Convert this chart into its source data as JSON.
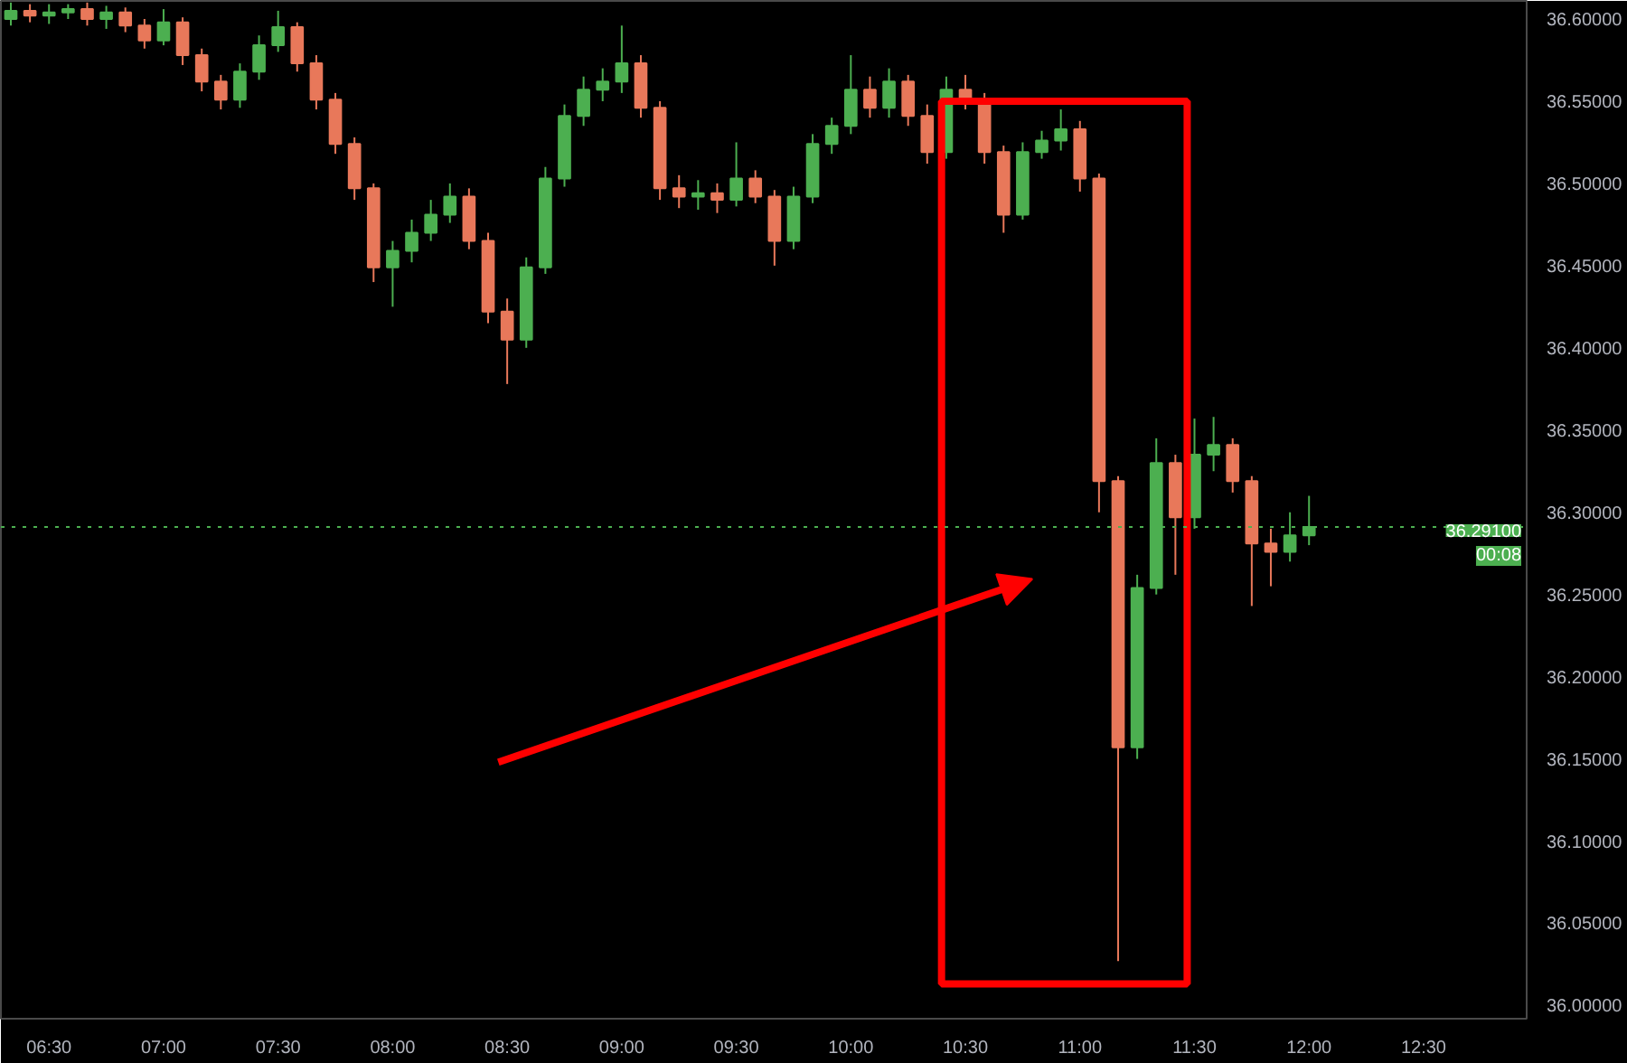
{
  "chart_data": {
    "type": "candlestick",
    "x": [
      6.3333,
      6.4167,
      6.5,
      6.5833,
      6.6667,
      6.75,
      6.8333,
      6.9167,
      7.0,
      7.0833,
      7.1667,
      7.25,
      7.3333,
      7.4167,
      7.5,
      7.5833,
      7.6667,
      7.75,
      7.8333,
      7.9167,
      8.0,
      8.0833,
      8.1667,
      8.25,
      8.3333,
      8.4167,
      8.5,
      8.5833,
      8.6667,
      8.75,
      8.8333,
      8.9167,
      9.0,
      9.0833,
      9.1667,
      9.25,
      9.3333,
      9.4167,
      9.5,
      9.5833,
      9.6667,
      9.75,
      9.8333,
      9.9167,
      10.0,
      10.0833,
      10.1667,
      10.25,
      10.3333,
      10.4167,
      10.5,
      10.5833,
      10.6667,
      10.75,
      10.8333,
      10.9167,
      11.0,
      11.0833,
      11.1667,
      11.25,
      11.3333,
      11.4167,
      11.5,
      11.5833,
      11.6667,
      11.75,
      11.8333,
      11.9167,
      12.0
    ],
    "ohlc": [
      [
        36.6,
        36.61,
        36.596,
        36.605
      ],
      [
        36.605,
        36.609,
        36.598,
        36.602
      ],
      [
        36.602,
        36.609,
        36.597,
        36.604
      ],
      [
        36.604,
        36.609,
        36.6,
        36.606
      ],
      [
        36.606,
        36.61,
        36.596,
        36.6
      ],
      [
        36.6,
        36.608,
        36.594,
        36.604
      ],
      [
        36.604,
        36.607,
        36.592,
        36.596
      ],
      [
        36.596,
        36.6,
        36.582,
        36.587
      ],
      [
        36.587,
        36.606,
        36.584,
        36.598
      ],
      [
        36.598,
        36.601,
        36.572,
        36.578
      ],
      [
        36.578,
        36.582,
        36.556,
        36.562
      ],
      [
        36.562,
        36.566,
        36.545,
        36.551
      ],
      [
        36.551,
        36.573,
        36.546,
        36.568
      ],
      [
        36.568,
        36.59,
        36.563,
        36.584
      ],
      [
        36.584,
        36.605,
        36.58,
        36.595
      ],
      [
        36.595,
        36.598,
        36.568,
        36.573
      ],
      [
        36.573,
        36.578,
        36.545,
        36.551
      ],
      [
        36.551,
        36.555,
        36.518,
        36.524
      ],
      [
        36.524,
        36.528,
        36.49,
        36.497
      ],
      [
        36.497,
        36.5,
        36.44,
        36.449
      ],
      [
        36.449,
        36.465,
        36.425,
        36.459
      ],
      [
        36.459,
        36.478,
        36.452,
        36.47
      ],
      [
        36.47,
        36.49,
        36.465,
        36.481
      ],
      [
        36.481,
        36.5,
        36.476,
        36.492
      ],
      [
        36.492,
        36.497,
        36.46,
        36.465
      ],
      [
        36.465,
        36.47,
        36.415,
        36.422
      ],
      [
        36.422,
        36.43,
        36.378,
        36.405
      ],
      [
        36.405,
        36.455,
        36.4,
        36.449
      ],
      [
        36.449,
        36.51,
        36.445,
        36.503
      ],
      [
        36.503,
        36.548,
        36.498,
        36.541
      ],
      [
        36.541,
        36.565,
        36.535,
        36.557
      ],
      [
        36.557,
        36.57,
        36.55,
        36.562
      ],
      [
        36.562,
        36.596,
        36.555,
        36.573
      ],
      [
        36.573,
        36.578,
        36.54,
        36.546
      ],
      [
        36.546,
        36.55,
        36.49,
        36.497
      ],
      [
        36.497,
        36.505,
        36.485,
        36.492
      ],
      [
        36.492,
        36.502,
        36.484,
        36.494
      ],
      [
        36.494,
        36.5,
        36.482,
        36.49
      ],
      [
        36.49,
        36.525,
        36.486,
        36.503
      ],
      [
        36.503,
        36.508,
        36.488,
        36.492
      ],
      [
        36.492,
        36.496,
        36.45,
        36.465
      ],
      [
        36.465,
        36.498,
        36.46,
        36.492
      ],
      [
        36.492,
        36.53,
        36.488,
        36.524
      ],
      [
        36.524,
        36.54,
        36.518,
        36.535
      ],
      [
        36.535,
        36.578,
        36.53,
        36.557
      ],
      [
        36.557,
        36.565,
        36.54,
        36.546
      ],
      [
        36.546,
        36.57,
        36.54,
        36.562
      ],
      [
        36.562,
        36.566,
        36.535,
        36.541
      ],
      [
        36.541,
        36.548,
        36.512,
        36.519
      ],
      [
        36.519,
        36.565,
        36.515,
        36.557
      ],
      [
        36.557,
        36.566,
        36.545,
        36.551
      ],
      [
        36.551,
        36.555,
        36.512,
        36.519
      ],
      [
        36.519,
        36.523,
        36.47,
        36.481
      ],
      [
        36.481,
        36.525,
        36.478,
        36.519
      ],
      [
        36.519,
        36.532,
        36.515,
        36.526
      ],
      [
        36.526,
        36.545,
        36.52,
        36.533
      ],
      [
        36.533,
        36.538,
        36.495,
        36.503
      ],
      [
        36.503,
        36.506,
        36.3,
        36.319
      ],
      [
        36.319,
        36.322,
        36.027,
        36.157
      ],
      [
        36.157,
        36.262,
        36.15,
        36.254
      ],
      [
        36.254,
        36.345,
        36.25,
        36.33
      ],
      [
        36.33,
        36.335,
        36.262,
        36.297
      ],
      [
        36.297,
        36.357,
        36.29,
        36.335
      ],
      [
        36.335,
        36.358,
        36.325,
        36.341
      ],
      [
        36.341,
        36.345,
        36.312,
        36.319
      ],
      [
        36.319,
        36.322,
        36.243,
        36.281
      ],
      [
        36.281,
        36.29,
        36.255,
        36.276
      ],
      [
        36.276,
        36.3,
        36.27,
        36.286
      ],
      [
        36.286,
        36.31,
        36.28,
        36.291
      ]
    ],
    "colors": [
      "#4caf50",
      "#e8785a",
      "#4caf50",
      "#4caf50",
      "#e8785a",
      "#4caf50",
      "#e8785a",
      "#e8785a",
      "#4caf50",
      "#e8785a",
      "#e8785a",
      "#e8785a",
      "#4caf50",
      "#4caf50",
      "#4caf50",
      "#e8785a",
      "#e8785a",
      "#e8785a",
      "#e8785a",
      "#e8785a",
      "#4caf50",
      "#4caf50",
      "#4caf50",
      "#4caf50",
      "#e8785a",
      "#e8785a",
      "#e8785a",
      "#4caf50",
      "#4caf50",
      "#4caf50",
      "#4caf50",
      "#4caf50",
      "#4caf50",
      "#e8785a",
      "#e8785a",
      "#e8785a",
      "#4caf50",
      "#e8785a",
      "#4caf50",
      "#e8785a",
      "#e8785a",
      "#4caf50",
      "#4caf50",
      "#4caf50",
      "#4caf50",
      "#e8785a",
      "#4caf50",
      "#e8785a",
      "#e8785a",
      "#4caf50",
      "#e8785a",
      "#e8785a",
      "#e8785a",
      "#4caf50",
      "#4caf50",
      "#4caf50",
      "#e8785a",
      "#e8785a",
      "#e8785a",
      "#4caf50",
      "#4caf50",
      "#e8785a",
      "#4caf50",
      "#4caf50",
      "#e8785a",
      "#e8785a",
      "#e8785a",
      "#4caf50",
      "#4caf50"
    ],
    "xlim": [
      6.29,
      12.95
    ],
    "xticks": [
      {
        "value": 6.5,
        "label": "06:30"
      },
      {
        "value": 7.0,
        "label": "07:00"
      },
      {
        "value": 7.5,
        "label": "07:30"
      },
      {
        "value": 8.0,
        "label": "08:00"
      },
      {
        "value": 8.5,
        "label": "08:30"
      },
      {
        "value": 9.0,
        "label": "09:00"
      },
      {
        "value": 9.5,
        "label": "09:30"
      },
      {
        "value": 10.0,
        "label": "10:00"
      },
      {
        "value": 10.5,
        "label": "10:30"
      },
      {
        "value": 11.0,
        "label": "11:00"
      },
      {
        "value": 11.5,
        "label": "11:30"
      },
      {
        "value": 12.0,
        "label": "12:00"
      },
      {
        "value": 12.5,
        "label": "12:30"
      }
    ],
    "ylim": [
      35.992,
      36.611
    ],
    "yticks": [
      {
        "value": 36.0,
        "label": "36.00000"
      },
      {
        "value": 36.05,
        "label": "36.05000"
      },
      {
        "value": 36.1,
        "label": "36.10000"
      },
      {
        "value": 36.15,
        "label": "36.15000"
      },
      {
        "value": 36.2,
        "label": "36.20000"
      },
      {
        "value": 36.25,
        "label": "36.25000"
      },
      {
        "value": 36.3,
        "label": "36.30000"
      },
      {
        "value": 36.35,
        "label": "36.35000"
      },
      {
        "value": 36.4,
        "label": "36.40000"
      },
      {
        "value": 36.45,
        "label": "36.45000"
      },
      {
        "value": 36.5,
        "label": "36.50000"
      },
      {
        "value": 36.55,
        "label": "36.55000"
      },
      {
        "value": 36.6,
        "label": "36.60000"
      }
    ],
    "ref_lines": [
      {
        "axis": "y",
        "value": 36.291,
        "label": "36.29100",
        "color": "#4caf50",
        "line_style": "dotted"
      }
    ],
    "annotations": [
      "00:08"
    ],
    "grid": false
  }
}
